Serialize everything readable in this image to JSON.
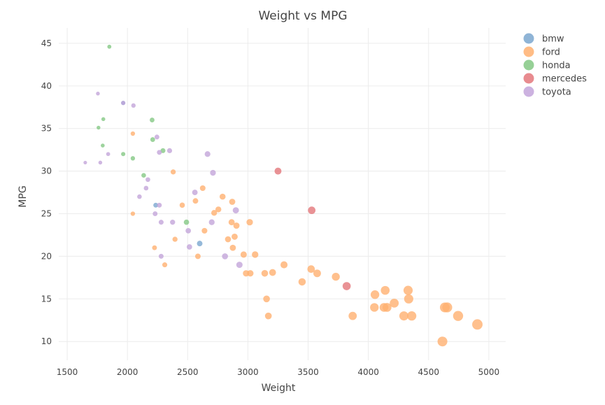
{
  "chart_data": {
    "type": "scatter",
    "title": "Weight vs MPG",
    "xlabel": "Weight",
    "ylabel": "MPG",
    "xlim": [
      1430,
      5140
    ],
    "ylim": [
      7.8,
      46.8
    ],
    "x_ticks": [
      1500,
      2000,
      2500,
      3000,
      3500,
      4000,
      4500,
      5000
    ],
    "y_ticks": [
      10,
      15,
      20,
      25,
      30,
      35,
      40,
      45
    ],
    "grid": true,
    "legend_position": "top-right",
    "marker_size_encodes": "Weight",
    "colors": {
      "bmw": "#7ba7cf",
      "ford": "#ffb070",
      "honda": "#84c884",
      "mercedes": "#e4777b",
      "toyota": "#c3a5da"
    },
    "series": [
      {
        "name": "bmw",
        "points": [
          {
            "x": 1965,
            "y": 38.0
          },
          {
            "x": 2235,
            "y": 26.0
          },
          {
            "x": 2600,
            "y": 21.5
          }
        ]
      },
      {
        "name": "ford",
        "points": [
          {
            "x": 2045,
            "y": 34.4
          },
          {
            "x": 2045,
            "y": 25.0
          },
          {
            "x": 2225,
            "y": 21.0
          },
          {
            "x": 2310,
            "y": 19.0
          },
          {
            "x": 2380,
            "y": 29.9
          },
          {
            "x": 2395,
            "y": 22.0
          },
          {
            "x": 2455,
            "y": 26.0
          },
          {
            "x": 2565,
            "y": 26.5
          },
          {
            "x": 2585,
            "y": 20.0
          },
          {
            "x": 2625,
            "y": 28.0
          },
          {
            "x": 2640,
            "y": 23.0
          },
          {
            "x": 2720,
            "y": 25.1
          },
          {
            "x": 2755,
            "y": 25.5
          },
          {
            "x": 2790,
            "y": 27.0
          },
          {
            "x": 2835,
            "y": 22.0
          },
          {
            "x": 2865,
            "y": 24.0
          },
          {
            "x": 2870,
            "y": 26.4
          },
          {
            "x": 2875,
            "y": 21.0
          },
          {
            "x": 2890,
            "y": 22.3
          },
          {
            "x": 2905,
            "y": 23.6
          },
          {
            "x": 2965,
            "y": 20.2
          },
          {
            "x": 2985,
            "y": 18.0
          },
          {
            "x": 3015,
            "y": 24.0
          },
          {
            "x": 3020,
            "y": 18.0
          },
          {
            "x": 3060,
            "y": 20.2
          },
          {
            "x": 3140,
            "y": 18.0
          },
          {
            "x": 3155,
            "y": 15.0
          },
          {
            "x": 3170,
            "y": 13.0
          },
          {
            "x": 3205,
            "y": 18.1
          },
          {
            "x": 3300,
            "y": 19.0
          },
          {
            "x": 3450,
            "y": 17.0
          },
          {
            "x": 3525,
            "y": 18.5
          },
          {
            "x": 3575,
            "y": 18.0
          },
          {
            "x": 3730,
            "y": 17.6
          },
          {
            "x": 3870,
            "y": 13.0
          },
          {
            "x": 4050,
            "y": 14.0
          },
          {
            "x": 4055,
            "y": 15.5
          },
          {
            "x": 4130,
            "y": 14.0
          },
          {
            "x": 4140,
            "y": 16.0
          },
          {
            "x": 4155,
            "y": 14.0
          },
          {
            "x": 4215,
            "y": 14.5
          },
          {
            "x": 4295,
            "y": 13.0
          },
          {
            "x": 4330,
            "y": 16.0
          },
          {
            "x": 4335,
            "y": 15.0
          },
          {
            "x": 4360,
            "y": 13.0
          },
          {
            "x": 4615,
            "y": 10.0
          },
          {
            "x": 4635,
            "y": 14.0
          },
          {
            "x": 4655,
            "y": 14.0
          },
          {
            "x": 4745,
            "y": 13.0
          },
          {
            "x": 4905,
            "y": 12.0
          }
        ]
      },
      {
        "name": "honda",
        "points": [
          {
            "x": 1760,
            "y": 35.1
          },
          {
            "x": 1795,
            "y": 33.0
          },
          {
            "x": 1800,
            "y": 36.1
          },
          {
            "x": 1850,
            "y": 44.6
          },
          {
            "x": 1965,
            "y": 32.0
          },
          {
            "x": 2045,
            "y": 31.5
          },
          {
            "x": 2135,
            "y": 29.5
          },
          {
            "x": 2205,
            "y": 36.0
          },
          {
            "x": 2210,
            "y": 33.7
          },
          {
            "x": 2295,
            "y": 32.4
          },
          {
            "x": 2490,
            "y": 24.0
          }
        ]
      },
      {
        "name": "mercedes",
        "points": [
          {
            "x": 3250,
            "y": 30.0
          },
          {
            "x": 3530,
            "y": 25.4
          },
          {
            "x": 3820,
            "y": 16.5
          }
        ]
      },
      {
        "name": "toyota",
        "points": [
          {
            "x": 1650,
            "y": 31.0
          },
          {
            "x": 1755,
            "y": 39.1
          },
          {
            "x": 1775,
            "y": 31.0
          },
          {
            "x": 1840,
            "y": 32.0
          },
          {
            "x": 1965,
            "y": 38.0
          },
          {
            "x": 2050,
            "y": 37.7
          },
          {
            "x": 2100,
            "y": 27.0
          },
          {
            "x": 2155,
            "y": 28.0
          },
          {
            "x": 2170,
            "y": 29.0
          },
          {
            "x": 2230,
            "y": 25.0
          },
          {
            "x": 2245,
            "y": 34.0
          },
          {
            "x": 2265,
            "y": 26.0
          },
          {
            "x": 2265,
            "y": 32.2
          },
          {
            "x": 2280,
            "y": 24.0
          },
          {
            "x": 2280,
            "y": 20.0
          },
          {
            "x": 2350,
            "y": 32.4
          },
          {
            "x": 2375,
            "y": 24.0
          },
          {
            "x": 2505,
            "y": 23.0
          },
          {
            "x": 2515,
            "y": 21.1
          },
          {
            "x": 2560,
            "y": 27.5
          },
          {
            "x": 2665,
            "y": 32.0
          },
          {
            "x": 2700,
            "y": 24.0
          },
          {
            "x": 2710,
            "y": 29.8
          },
          {
            "x": 2810,
            "y": 20.0
          },
          {
            "x": 2900,
            "y": 25.4
          },
          {
            "x": 2930,
            "y": 19.0
          }
        ]
      }
    ]
  }
}
